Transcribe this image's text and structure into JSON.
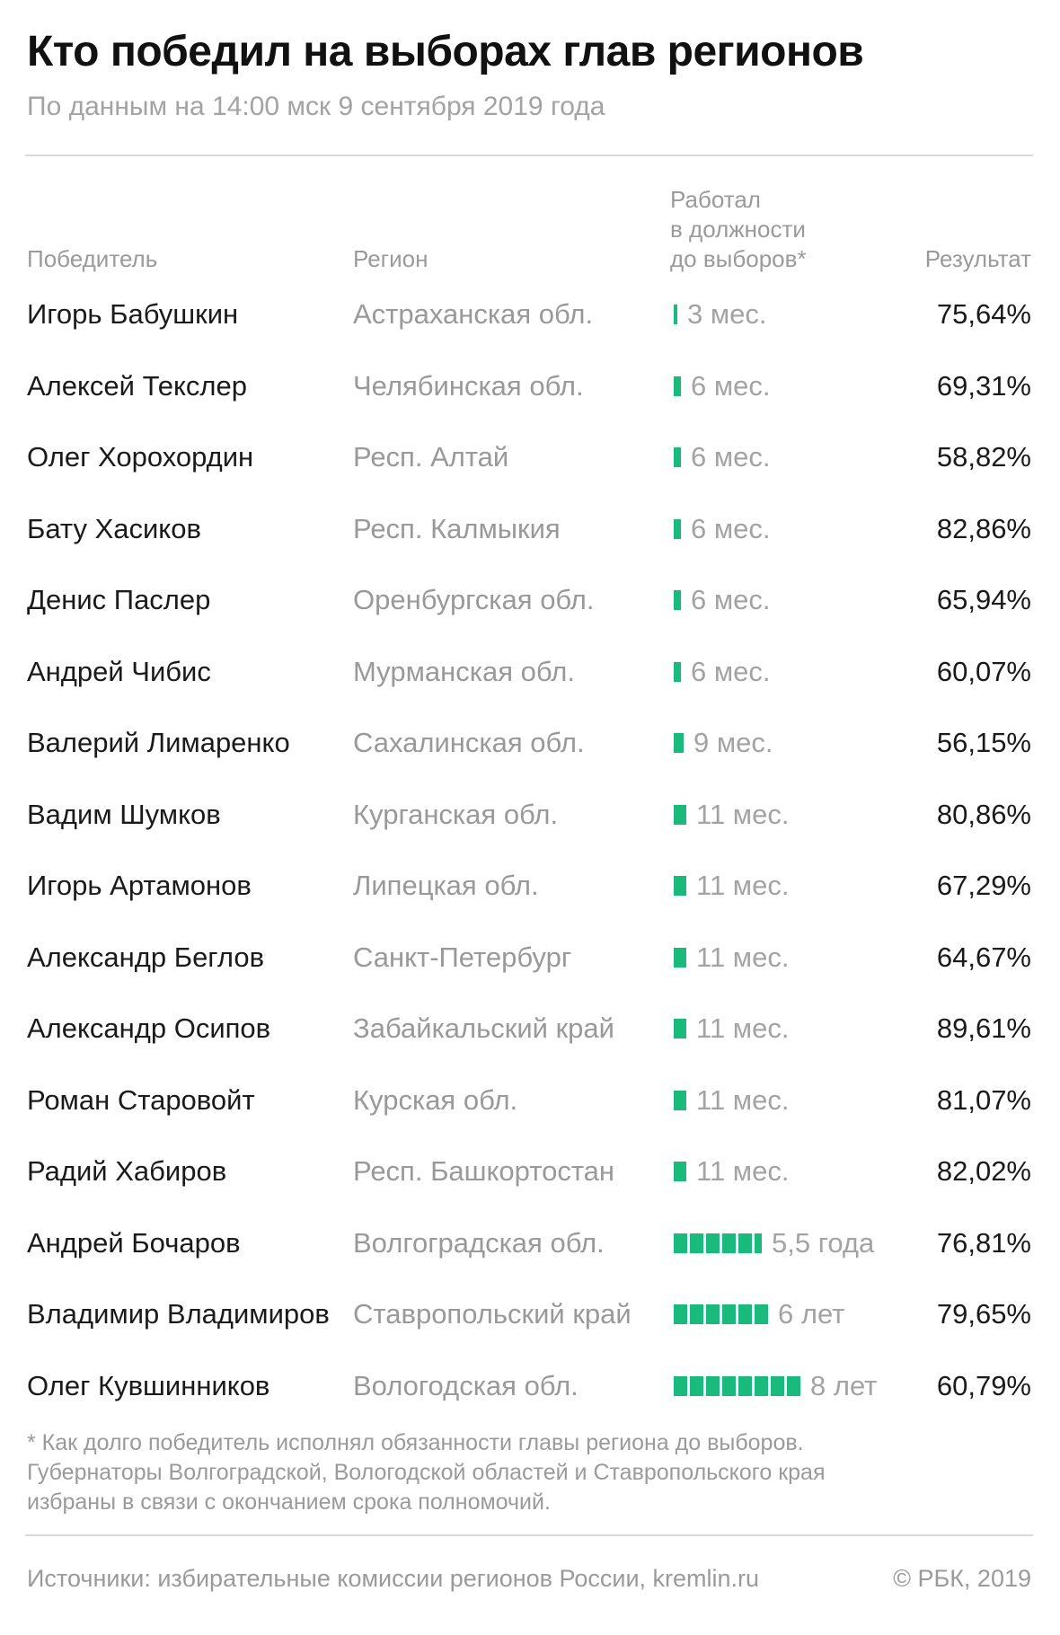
{
  "title": "Кто победил на выборах глав регионов",
  "subtitle": "По данным на 14:00 мск 9 сентября 2019 года",
  "columns": {
    "winner": "Победитель",
    "region": "Регион",
    "tenure": [
      "Работал",
      "в должности",
      "до выборов*"
    ],
    "result": "Результат"
  },
  "chart_data": {
    "type": "table",
    "title": "Кто победил на выборах глав регионов",
    "bar_color": "#1aba7d",
    "tenure_unit": "months",
    "rows": [
      {
        "winner": "Игорь Бабушкин",
        "region": "Астраханская обл.",
        "tenure_months": 3,
        "tenure_label": "3 мес.",
        "result": "75,64%",
        "result_value": 75.64
      },
      {
        "winner": "Алексей Текслер",
        "region": "Челябинская обл.",
        "tenure_months": 6,
        "tenure_label": "6 мес.",
        "result": "69,31%",
        "result_value": 69.31
      },
      {
        "winner": "Олег Хорохордин",
        "region": "Респ. Алтай",
        "tenure_months": 6,
        "tenure_label": "6 мес.",
        "result": "58,82%",
        "result_value": 58.82
      },
      {
        "winner": "Бату Хасиков",
        "region": "Респ. Калмыкия",
        "tenure_months": 6,
        "tenure_label": "6 мес.",
        "result": "82,86%",
        "result_value": 82.86
      },
      {
        "winner": "Денис Паслер",
        "region": "Оренбургская обл.",
        "tenure_months": 6,
        "tenure_label": "6 мес.",
        "result": "65,94%",
        "result_value": 65.94
      },
      {
        "winner": "Андрей Чибис",
        "region": "Мурманская обл.",
        "tenure_months": 6,
        "tenure_label": "6 мес.",
        "result": "60,07%",
        "result_value": 60.07
      },
      {
        "winner": "Валерий Лимаренко",
        "region": "Сахалинская обл.",
        "tenure_months": 9,
        "tenure_label": "9 мес.",
        "result": "56,15%",
        "result_value": 56.15
      },
      {
        "winner": "Вадим Шумков",
        "region": "Курганская обл.",
        "tenure_months": 11,
        "tenure_label": "11 мес.",
        "result": "80,86%",
        "result_value": 80.86
      },
      {
        "winner": "Игорь Артамонов",
        "region": "Липецкая обл.",
        "tenure_months": 11,
        "tenure_label": "11 мес.",
        "result": "67,29%",
        "result_value": 67.29
      },
      {
        "winner": "Александр Беглов",
        "region": "Санкт-Петербург",
        "tenure_months": 11,
        "tenure_label": "11 мес.",
        "result": "64,67%",
        "result_value": 64.67
      },
      {
        "winner": "Александр Осипов",
        "region": "Забайкальский край",
        "tenure_months": 11,
        "tenure_label": "11 мес.",
        "result": "89,61%",
        "result_value": 89.61
      },
      {
        "winner": "Роман Старовойт",
        "region": "Курская обл.",
        "tenure_months": 11,
        "tenure_label": "11 мес.",
        "result": "81,07%",
        "result_value": 81.07
      },
      {
        "winner": "Радий Хабиров",
        "region": "Респ. Башкортостан",
        "tenure_months": 11,
        "tenure_label": "11 мес.",
        "result": "82,02%",
        "result_value": 82.02
      },
      {
        "winner": "Андрей Бочаров",
        "region": "Волгоградская обл.",
        "tenure_months": 66,
        "tenure_label": "5,5 года",
        "result": "76,81%",
        "result_value": 76.81
      },
      {
        "winner": "Владимир Владимиров",
        "region": "Ставропольский край",
        "tenure_months": 72,
        "tenure_label": "6 лет",
        "result": "79,65%",
        "result_value": 79.65
      },
      {
        "winner": "Олег Кувшинников",
        "region": "Вологодская обл.",
        "tenure_months": 96,
        "tenure_label": "8 лет",
        "result": "60,79%",
        "result_value": 60.79
      }
    ]
  },
  "footnote": [
    "* Как долго победитель исполнял обязанности главы региона до выборов.",
    "Губернаторы Волгоградской, Вологодской областей и Ставропольского края",
    "избраны в связи с окончанием срока полномочий."
  ],
  "sources": "Источники: избирательные комиссии регионов России, kremlin.ru",
  "copyright": "© РБК, 2019"
}
